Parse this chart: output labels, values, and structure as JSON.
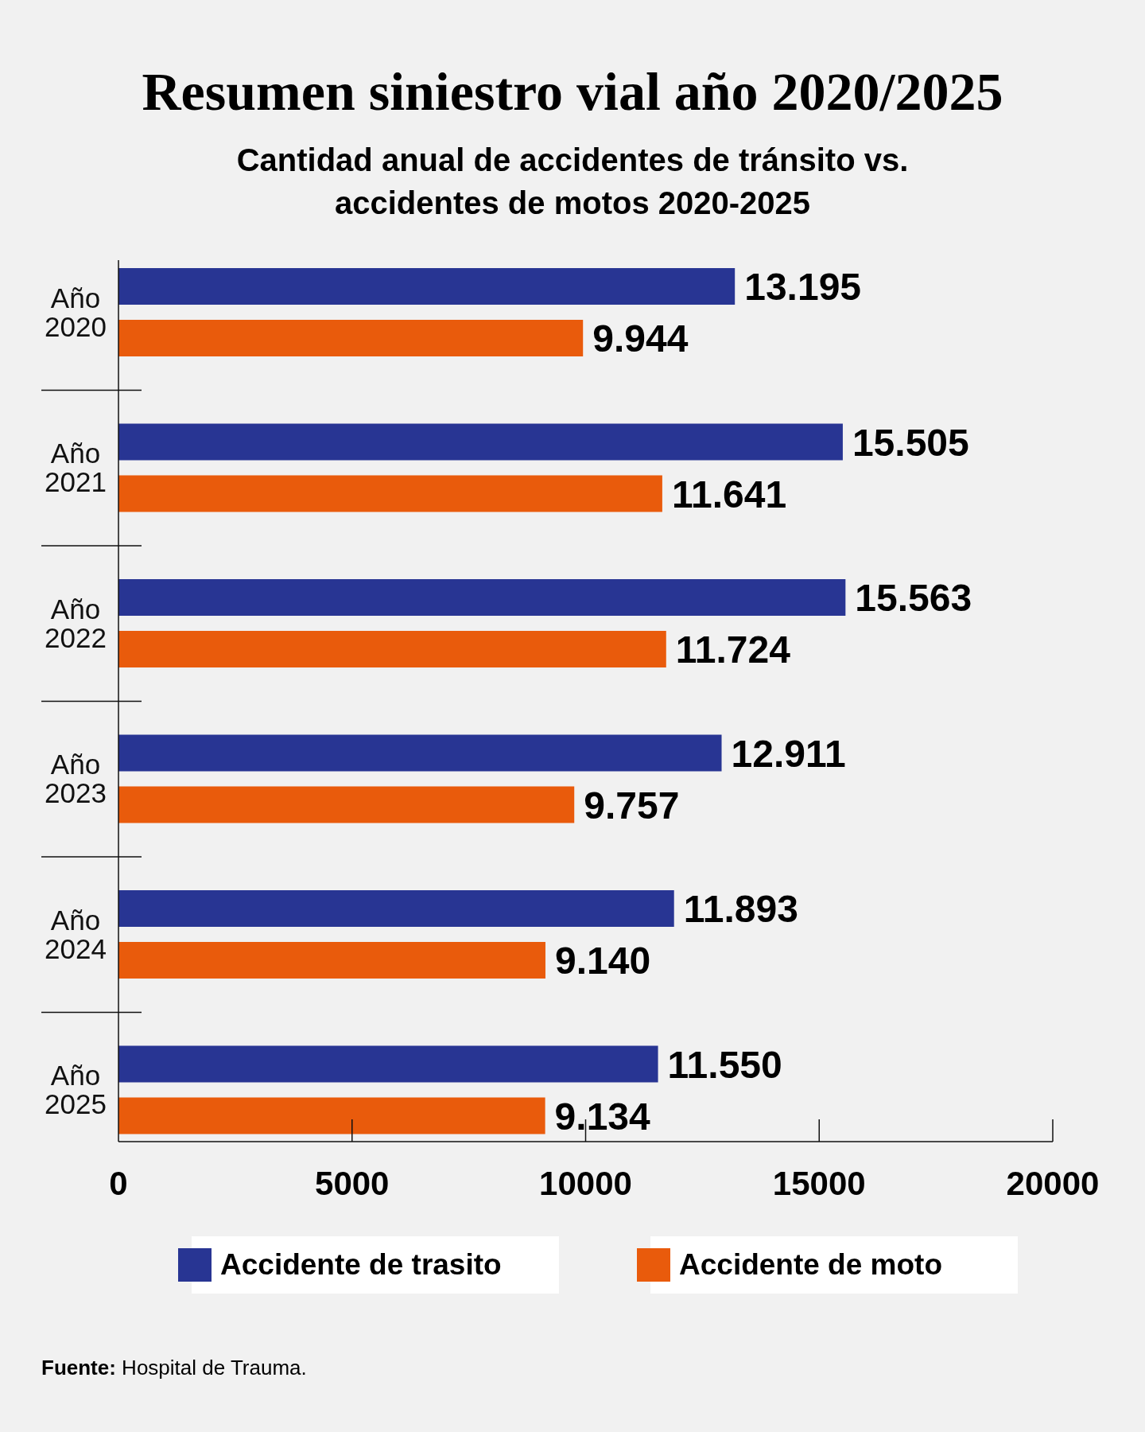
{
  "chart_data": {
    "type": "bar",
    "orientation": "horizontal",
    "title": "Resumen siniestro vial año 2020/2025",
    "subtitle": "Cantidad anual de accidentes de tránsito vs. accidentes de motos 2020-2025",
    "categories": [
      "Año 2020",
      "Año 2021",
      "Año 2022",
      "Año 2023",
      "Año 2024",
      "Año 2025"
    ],
    "series": [
      {
        "name": "Accidente de trasito",
        "color": "#283593",
        "values": [
          13195,
          15505,
          15563,
          12911,
          11893,
          11550
        ],
        "value_labels": [
          "13.195",
          "15.505",
          "15.563",
          "12.911",
          "11.893",
          "11.550"
        ]
      },
      {
        "name": "Accidente de moto",
        "color": "#e95b0c",
        "values": [
          9944,
          11641,
          11724,
          9757,
          9140,
          9134
        ],
        "value_labels": [
          "9.944",
          "11.641",
          "11.724",
          "9.757",
          "9.140",
          "9.134"
        ]
      }
    ],
    "xlim": [
      0,
      20000
    ],
    "xticks": [
      0,
      5000,
      10000,
      15000,
      20000
    ],
    "legend": "bottom",
    "annotations": [
      "Fuente: Hospital de Trauma."
    ]
  }
}
